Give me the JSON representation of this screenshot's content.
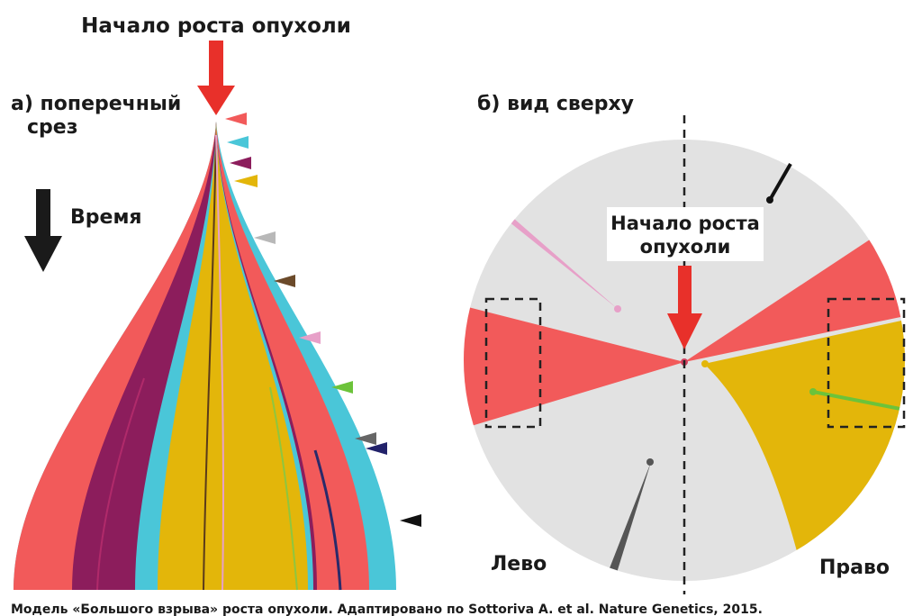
{
  "panel_a": {
    "top_label": "Начало роста опухоли",
    "label_lines": [
      "а) поперечный",
      "срез"
    ],
    "time_label": "Время"
  },
  "panel_b": {
    "label": "б) вид сверху",
    "origin_label_lines": [
      "Начало роста",
      "опухоли"
    ],
    "left_label": "Лево",
    "right_label": "Право"
  },
  "caption": "Модель «Большого взрыва» роста опухоли. Адаптировано по Sottoriva A. et al. Nature Genetics, 2015."
}
